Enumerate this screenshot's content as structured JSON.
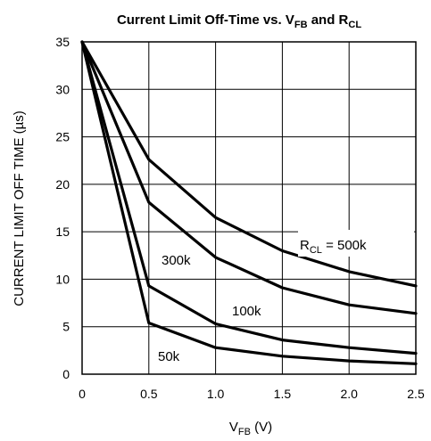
{
  "chart_data": {
    "type": "line",
    "title": {
      "main": "Current Limit Off-Time vs. V",
      "sub1": "FB",
      "mid": " and R",
      "sub2": "CL"
    },
    "xlabel": {
      "main": "V",
      "sub": "FB",
      "rest": " (V)"
    },
    "ylabel": "CURRENT LIMIT OFF TIME (µs)",
    "xlim": [
      0,
      2.5
    ],
    "ylim": [
      0,
      35
    ],
    "xticks": [
      0,
      0.5,
      1.0,
      1.5,
      2.0,
      2.5
    ],
    "xtick_labels": [
      "0",
      "0.5",
      "1.0",
      "1.5",
      "2.0",
      "2.5"
    ],
    "yticks": [
      0,
      5,
      10,
      15,
      20,
      25,
      30,
      35
    ],
    "ytick_labels": [
      "0",
      "5",
      "10",
      "15",
      "20",
      "25",
      "30",
      "35"
    ],
    "grid": true,
    "x": [
      0,
      0.5,
      1.0,
      1.5,
      2.0,
      2.5
    ],
    "series": [
      {
        "name": "500k",
        "values": [
          35,
          22.6,
          16.5,
          13.0,
          10.8,
          9.3
        ]
      },
      {
        "name": "300k",
        "values": [
          35,
          18.1,
          12.3,
          9.1,
          7.3,
          6.4
        ]
      },
      {
        "name": "100k",
        "values": [
          35,
          9.3,
          5.3,
          3.6,
          2.8,
          2.2
        ]
      },
      {
        "name": "50k",
        "values": [
          35,
          5.4,
          2.8,
          1.9,
          1.4,
          1.1
        ]
      }
    ],
    "annotations": {
      "r500": {
        "main": "R",
        "sub": "CL",
        "rest": " = 500k"
      },
      "r300": "300k",
      "r100": "100k",
      "r50": "50k"
    }
  }
}
